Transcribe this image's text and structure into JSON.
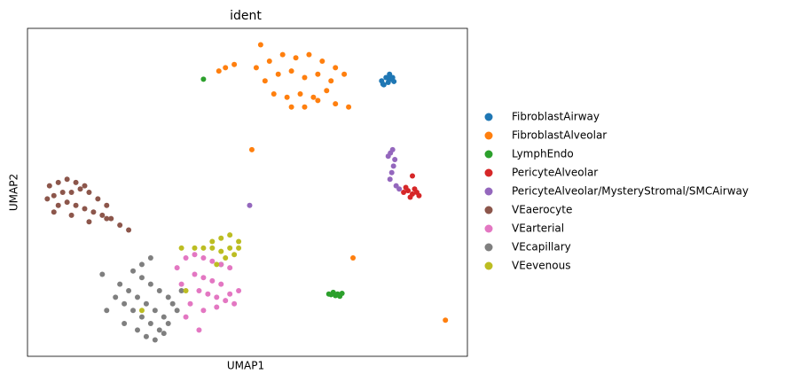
{
  "chart_data": {
    "type": "scatter",
    "title": "ident",
    "x_label": "UMAP1",
    "y_label": "UMAP2",
    "xlim": [
      0,
      100
    ],
    "ylim": [
      0,
      100
    ],
    "series": [
      {
        "name": "FibroblastAirway",
        "color": "#1f77b4",
        "x": [
          80.5,
          81.5,
          82,
          82.5,
          83,
          81,
          82.3,
          83.3,
          80.8,
          82
        ],
        "y": [
          84,
          85,
          83.5,
          84.5,
          85,
          82.8,
          86,
          83.8,
          83,
          84.8
        ]
      },
      {
        "name": "FibroblastAlveolar",
        "color": "#ff7f0e",
        "x": [
          52,
          55,
          58,
          61,
          64,
          67,
          70,
          72,
          54,
          57,
          60,
          63,
          66,
          69,
          56,
          59,
          62,
          65,
          68,
          60,
          63,
          66,
          70,
          73,
          43.5,
          45,
          47,
          53,
          51,
          74,
          95
        ],
        "y": [
          88,
          90,
          92,
          91,
          92,
          90,
          88,
          86,
          84,
          86,
          87,
          85,
          86,
          84,
          80,
          79,
          80,
          79,
          81,
          76,
          76,
          78,
          77,
          76,
          87,
          88,
          89,
          95,
          63,
          30,
          11
        ]
      },
      {
        "name": "LymphEndo",
        "color": "#2ca02c",
        "x": [
          68.5,
          69.5,
          70.5,
          71.5,
          70,
          69,
          71,
          40,
          44
        ],
        "y": [
          19,
          19.5,
          19,
          19.2,
          18.5,
          18.8,
          18.3,
          84.5,
          28
        ]
      },
      {
        "name": "PericyteAlveolar",
        "color": "#d62728",
        "x": [
          85.5,
          86.5,
          87.5,
          88.5,
          89,
          87,
          86,
          88,
          87.5
        ],
        "y": [
          50,
          50.5,
          49.5,
          50,
          49,
          48.5,
          51.5,
          51,
          55
        ]
      },
      {
        "name": "PericyteAlveolar/MysteryStromal/SMCAirway",
        "color": "#9467bd",
        "x": [
          82,
          82.5,
          83,
          83.5,
          83.2,
          82.8,
          82.4,
          83.8,
          84.5,
          50.5
        ],
        "y": [
          61,
          62,
          63,
          60,
          58,
          56,
          54,
          52,
          51,
          46
        ]
      },
      {
        "name": "VEaerocyte",
        "color": "#8c564b",
        "x": [
          5,
          7,
          9,
          11,
          13,
          6,
          8,
          10,
          12,
          14,
          16,
          18,
          7,
          9,
          11,
          13,
          15,
          17,
          19,
          21,
          23,
          10,
          14,
          18,
          4.5,
          6
        ],
        "y": [
          52,
          53,
          54,
          53,
          52,
          49,
          50,
          50,
          51,
          50,
          48,
          46,
          46,
          47,
          46,
          45,
          44,
          43,
          42,
          40,
          38.5,
          43,
          41,
          42,
          48,
          44
        ]
      },
      {
        "name": "VEarterial",
        "color": "#e377c2",
        "x": [
          36,
          38,
          40,
          42,
          44,
          46,
          38,
          40,
          42,
          44,
          39,
          41,
          43,
          45,
          47,
          37,
          35,
          40,
          43,
          46,
          48,
          34,
          36,
          39
        ],
        "y": [
          30,
          31,
          30,
          29,
          28,
          27,
          25,
          24,
          23,
          22,
          20,
          19,
          18,
          17,
          16,
          16,
          22,
          14,
          15,
          19,
          20,
          27,
          12,
          8
        ]
      },
      {
        "name": "VEcapillary",
        "color": "#7f7f7f",
        "x": [
          20,
          22,
          24,
          26,
          28,
          30,
          32,
          34,
          21,
          23,
          25,
          27,
          29,
          31,
          33,
          24,
          26,
          28,
          30,
          32,
          22,
          25,
          27,
          29,
          31,
          18,
          17,
          28,
          26,
          35
        ],
        "y": [
          18,
          16,
          14,
          12,
          10,
          8,
          10,
          14,
          22,
          20,
          18,
          16,
          14,
          12,
          16,
          26,
          24,
          22,
          20,
          18,
          10,
          8,
          6,
          5,
          7,
          14,
          25,
          30,
          28,
          20
        ]
      },
      {
        "name": "VEevenous",
        "color": "#bcbd22",
        "x": [
          42,
          44,
          46,
          48,
          44,
          46,
          48,
          45,
          47,
          35,
          38,
          40,
          42,
          43,
          26,
          36
        ],
        "y": [
          35,
          36,
          37,
          35,
          32,
          33,
          33,
          30,
          31,
          33,
          33,
          33,
          33,
          28,
          14,
          20
        ]
      }
    ]
  }
}
